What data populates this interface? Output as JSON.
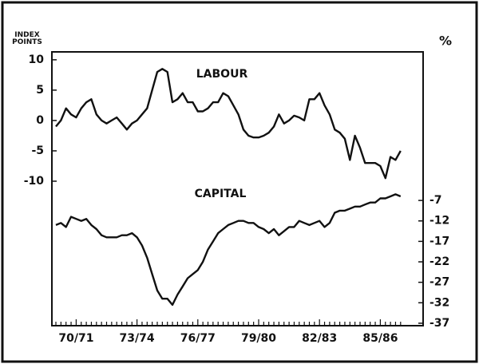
{
  "chart_data": {
    "type": "line",
    "y_label": "INDEX POINTS",
    "y2_label": "%",
    "categories": [
      null,
      null,
      null,
      null,
      "70/71",
      null,
      null,
      null,
      null,
      null,
      null,
      null,
      null,
      null,
      null,
      null,
      "73/74",
      null,
      null,
      null,
      null,
      null,
      null,
      null,
      null,
      null,
      null,
      null,
      "76/77",
      null,
      null,
      null,
      null,
      null,
      null,
      null,
      null,
      null,
      null,
      null,
      "79/80",
      null,
      null,
      null,
      null,
      null,
      null,
      null,
      null,
      null,
      null,
      null,
      "82/83",
      null,
      null,
      null,
      null,
      null,
      null,
      null,
      null,
      null,
      null,
      null,
      "85/86",
      null,
      null,
      null,
      null
    ],
    "series": [
      {
        "name": "LABOUR",
        "color": "#111111",
        "values": [
          -1,
          0,
          2,
          1,
          0.5,
          2,
          3,
          3.5,
          1,
          0,
          -0.5,
          0,
          0.5,
          -0.5,
          -1.5,
          -0.5,
          0,
          1,
          2,
          5,
          8,
          8.5,
          8,
          3,
          3.5,
          4.5,
          3,
          3,
          1.5,
          1.5,
          2,
          3,
          3,
          4.5,
          4,
          2.5,
          1,
          -1.5,
          -2.5,
          -2.8,
          -2.8,
          -2.5,
          -2,
          -1,
          1,
          -0.5,
          0,
          0.8,
          0.5,
          0,
          3.5,
          3.5,
          4.5,
          2.5,
          1,
          -1.5,
          -2,
          -3,
          -6.5,
          -2.5,
          -4.5,
          -7,
          -7,
          -7,
          -7.5,
          -9.5,
          -6,
          -6.5,
          -5
        ]
      },
      {
        "name": "CAPITAL",
        "color": "#111111",
        "axis": "y2",
        "values": [
          -13,
          -12.5,
          -13.5,
          -11,
          -11.5,
          -12,
          -11.5,
          -13,
          -14,
          -15.5,
          -16,
          -16,
          -16,
          -15.5,
          -15.5,
          -15,
          -16,
          -18,
          -21,
          -25,
          -29,
          -31,
          -31,
          -32.5,
          -30,
          -28,
          -26,
          -25,
          -24,
          -22,
          -19,
          -17,
          -15,
          -14,
          -13,
          -12.5,
          -12,
          -12,
          -12.5,
          -12.5,
          -13.5,
          -14,
          -15,
          -14,
          -15.5,
          -14.5,
          -13.5,
          -13.5,
          -12,
          -12.5,
          -13,
          -12.5,
          -12,
          -13.5,
          -12.5,
          -10,
          -9.5,
          -9.5,
          -9,
          -8.5,
          -8.5,
          -8,
          -7.5,
          -7.5,
          -6.5,
          -6.5,
          -6,
          -5.5,
          -6
        ]
      }
    ],
    "ylim": [
      -33.8,
      11.3
    ],
    "yticks": [
      10,
      5,
      0,
      -5,
      -10
    ],
    "y2lim": [
      -37.6,
      29.3
    ],
    "y2ticks": [
      -7,
      -12,
      -17,
      -22,
      -27,
      -32,
      -37
    ]
  }
}
